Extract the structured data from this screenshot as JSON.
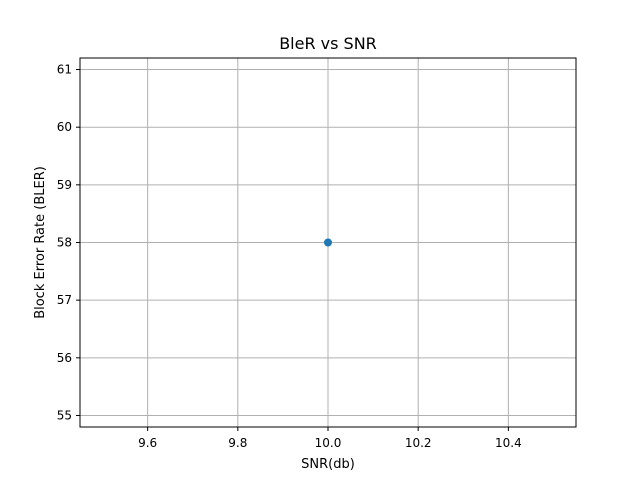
{
  "chart_data": {
    "type": "scatter",
    "title": "BleR vs SNR",
    "xlabel": "SNR(db)",
    "ylabel": "Block Error Rate (BLER)",
    "xlim": [
      9.45,
      10.55
    ],
    "ylim": [
      54.8,
      61.2
    ],
    "x_ticks": [
      9.6,
      9.8,
      10.0,
      10.2,
      10.4
    ],
    "x_tick_labels": [
      "9.6",
      "9.8",
      "10.0",
      "10.2",
      "10.4"
    ],
    "y_ticks": [
      55,
      56,
      57,
      58,
      59,
      60,
      61
    ],
    "y_tick_labels": [
      "55",
      "56",
      "57",
      "58",
      "59",
      "60",
      "61"
    ],
    "grid": true,
    "series": [
      {
        "x": [
          10.0
        ],
        "y": [
          58
        ],
        "color": "#1f77b4",
        "marker": "circle"
      }
    ]
  }
}
